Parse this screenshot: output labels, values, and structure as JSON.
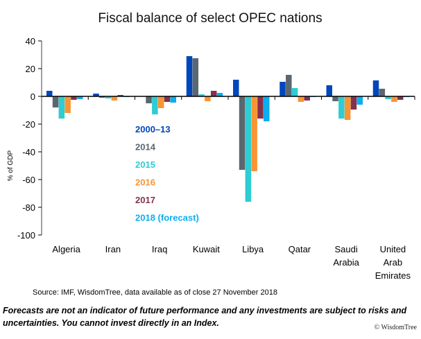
{
  "chart_data": {
    "type": "bar",
    "title": "Fiscal balance of select OPEC nations",
    "xlabel": "",
    "ylabel": "% of GDP",
    "ylim": [
      -100,
      40
    ],
    "yticks": [
      40,
      20,
      0,
      -20,
      -40,
      -60,
      -80,
      -100
    ],
    "grid": false,
    "legend_position": "center-left (inside plot, below zero line)",
    "categories": [
      [
        "Algeria"
      ],
      [
        "Iran"
      ],
      [
        "Iraq"
      ],
      [
        "Kuwait"
      ],
      [
        "Libya"
      ],
      [
        "Qatar"
      ],
      [
        "Saudi",
        "Arabia"
      ],
      [
        "United",
        "Arab",
        "Emirates"
      ]
    ],
    "series": [
      {
        "name": "2000–13",
        "color": "#0047BB",
        "values": [
          4,
          2,
          0,
          29,
          12,
          10.5,
          8,
          11.5
        ]
      },
      {
        "name": "2014",
        "color": "#5B6770",
        "values": [
          -8,
          -1,
          -5,
          27.5,
          -53,
          15.5,
          -3.5,
          5.5
        ]
      },
      {
        "name": "2015",
        "color": "#2ECCD3",
        "values": [
          -16,
          -1.5,
          -13,
          1.5,
          -76,
          6,
          -16,
          -2
        ]
      },
      {
        "name": "2016",
        "color": "#F89532",
        "values": [
          -12,
          -3,
          -8.5,
          -3.5,
          -54,
          -4,
          -17,
          -4
        ]
      },
      {
        "name": "2017",
        "color": "#84314E",
        "values": [
          -2.5,
          1,
          -4,
          4,
          -16,
          -3,
          -9.5,
          -2.5
        ]
      },
      {
        "name": "2018 (forecast)",
        "color": "#0BAEF0",
        "values": [
          -2,
          -0.5,
          -4.5,
          2.5,
          -18,
          -0.5,
          -6,
          -0.5
        ]
      }
    ]
  },
  "footer": {
    "source": "Source: IMF, WisdomTree, data available as of close 27 November  2018",
    "disclaimer": "Forecasts are not an indicator of future performance and any investments are subject to risks and uncertainties. You cannot invest directly in an Index.",
    "copyright": "© WisdomTree"
  }
}
